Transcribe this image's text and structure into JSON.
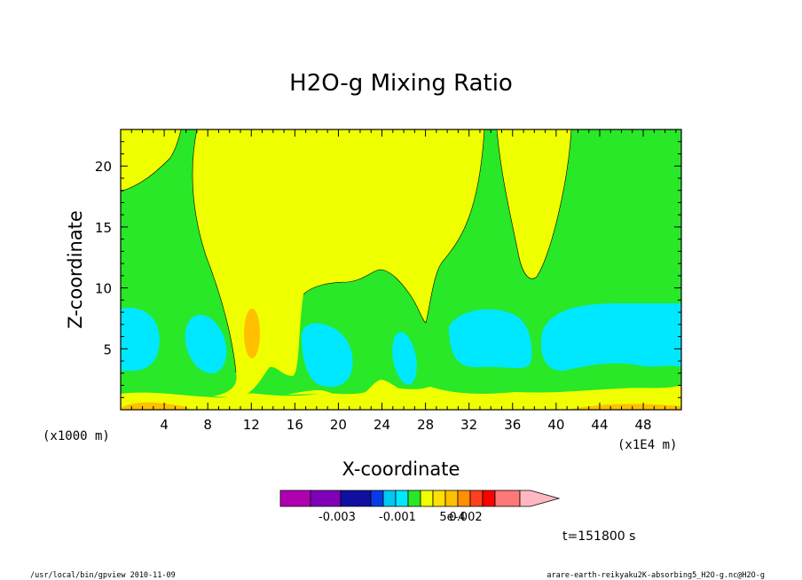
{
  "chart_data": {
    "type": "heatmap",
    "subtype": "filled-contour",
    "title": "H2O-g Mixing Ratio",
    "xlabel": "X-coordinate",
    "ylabel": "Z-coordinate",
    "x_unit_note": "(x1000 m)",
    "x_scale_note": "(x1E4 m)",
    "xlim": [
      0,
      51.5
    ],
    "ylim": [
      0,
      23
    ],
    "x_ticks": [
      4,
      8,
      12,
      16,
      20,
      24,
      28,
      32,
      36,
      40,
      44,
      48
    ],
    "x_tick_labels": [
      "4",
      "8",
      "12",
      "16",
      "20",
      "24",
      "28",
      "32",
      "36",
      "40",
      "44",
      "48"
    ],
    "y_ticks": [
      5,
      10,
      15,
      20
    ],
    "y_tick_labels": [
      "5",
      "10",
      "15",
      "20"
    ],
    "time_label": "t=151800 s",
    "colorbar": {
      "colors": [
        "#b000b0",
        "#8000b8",
        "#1010a0",
        "#0a3ae8",
        "#00c8f0",
        "#00e8ff",
        "#28e828",
        "#f0ff00",
        "#ffe000",
        "#ffc000",
        "#ff9000",
        "#ff4020",
        "#ff0000",
        "#ff7878",
        "#ffb8c0"
      ],
      "tick_labels": [
        "-0.003",
        "-0.001",
        "5e-4",
        "0.002"
      ]
    },
    "colors": {
      "yellow": "#f0ff00",
      "green": "#28e828",
      "cyan": "#00e8ff",
      "orange": "#ffc000",
      "dark_orange": "#ff9000"
    }
  },
  "footer": {
    "left": "/usr/local/bin/gpview   2010-11-09",
    "right": "arare-earth-reikyaku2K-absorbing5_H2O-g.nc@H2O-g"
  }
}
